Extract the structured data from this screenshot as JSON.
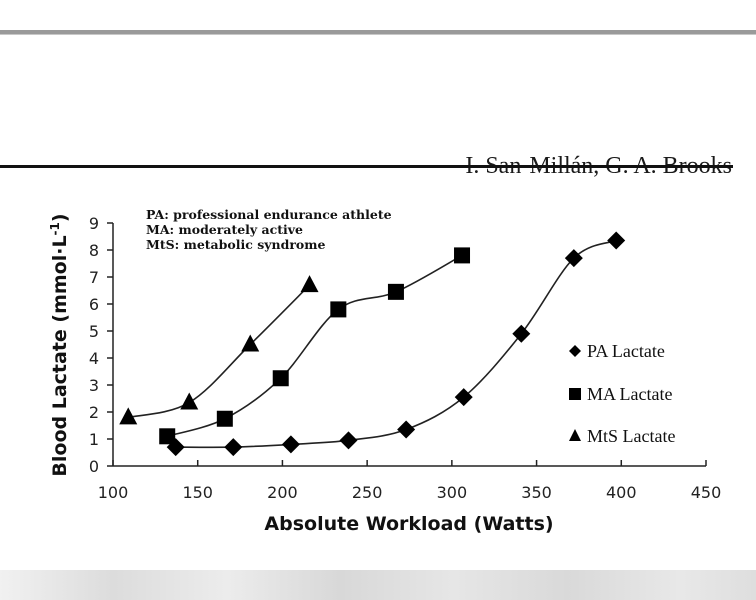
{
  "header": {
    "authors": "I. San-Millán, G. A. Brooks"
  },
  "chart_data": {
    "type": "scatter",
    "title": "",
    "annotations": [
      "PA: professional endurance athlete",
      "MA: moderately active",
      "MtS: metabolic syndrome"
    ],
    "xlabel": "Absolute Workload (Watts)",
    "ylabel": "Blood Lactate (mmol·L",
    "ylabel_superscript": "-1",
    "ylabel_close": ")",
    "xlim": [
      100,
      450
    ],
    "ylim": [
      0,
      9
    ],
    "xticks": [
      "100",
      "150",
      "200",
      "250",
      "300",
      "350",
      "400",
      "450"
    ],
    "yticks": [
      "0",
      "1",
      "2",
      "3",
      "4",
      "5",
      "6",
      "7",
      "8",
      "9"
    ],
    "grid": false,
    "legend_position": "right",
    "series": [
      {
        "name": "PA Lactate",
        "marker": "diamond",
        "color": "#000000",
        "x": [
          137,
          171,
          205,
          239,
          273,
          307,
          341,
          372,
          397
        ],
        "y": [
          0.7,
          0.7,
          0.8,
          0.95,
          1.35,
          2.55,
          4.9,
          7.7,
          8.35
        ]
      },
      {
        "name": "MA Lactate",
        "marker": "square",
        "color": "#000000",
        "x": [
          132,
          166,
          199,
          233,
          267,
          306
        ],
        "y": [
          1.1,
          1.75,
          3.25,
          5.8,
          6.45,
          7.8
        ]
      },
      {
        "name": "MtS Lactate",
        "marker": "triangle",
        "color": "#000000",
        "x": [
          109,
          145,
          181,
          216
        ],
        "y": [
          1.8,
          2.35,
          4.5,
          6.7
        ]
      }
    ]
  }
}
